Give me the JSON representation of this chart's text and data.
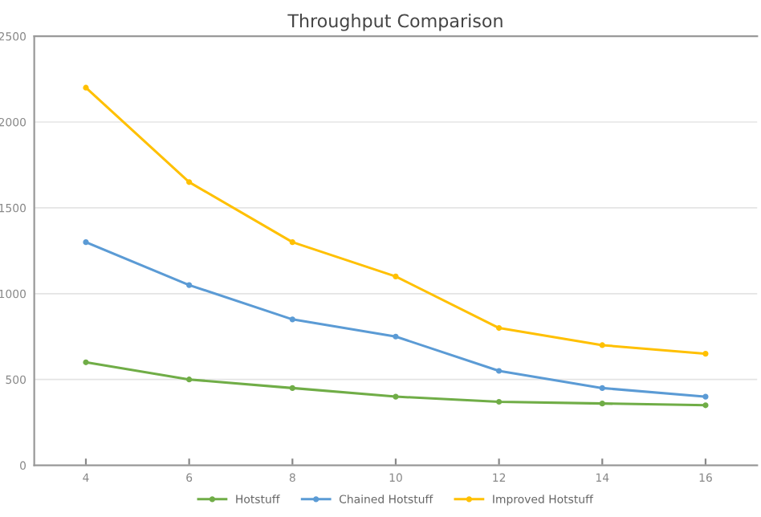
{
  "chart_data": {
    "type": "line",
    "title": "Throughput Comparison",
    "categories": [
      "4",
      "6",
      "8",
      "10",
      "12",
      "14",
      "16"
    ],
    "series": [
      {
        "name": "Hotstuff",
        "color": "#70ad47",
        "values": [
          600,
          500,
          450,
          400,
          370,
          360,
          350
        ]
      },
      {
        "name": "Chained Hotstuff",
        "color": "#5b9bd5",
        "values": [
          1300,
          1050,
          850,
          750,
          550,
          450,
          400
        ]
      },
      {
        "name": "Improved Hotstuff",
        "color": "#ffc000",
        "values": [
          2200,
          1650,
          1300,
          1100,
          800,
          700,
          650
        ]
      }
    ],
    "ylim": [
      0,
      2500
    ],
    "yticks": [
      0,
      500,
      1000,
      1500,
      2000,
      2500
    ],
    "grid": "y",
    "legend": "bottom",
    "marker": "circle",
    "line_style": "solid"
  }
}
